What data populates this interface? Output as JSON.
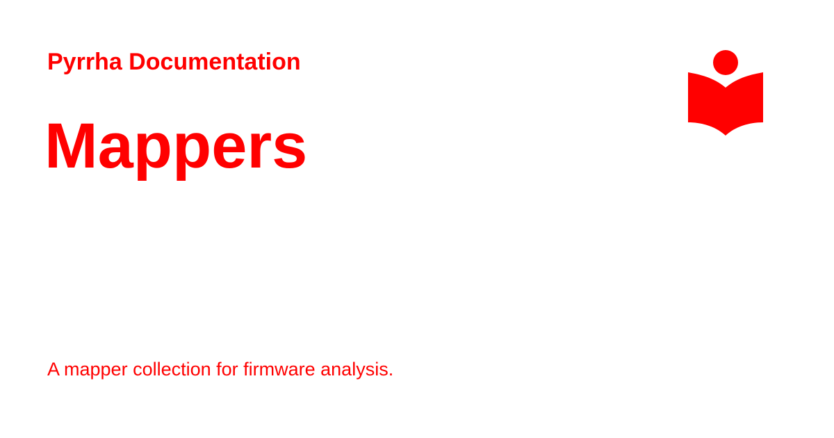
{
  "theme": {
    "accent": "#ff0000",
    "background": "#ffffff"
  },
  "header": {
    "site_name": "Pyrrha Documentation",
    "logo_icon": "reader-book-icon"
  },
  "main": {
    "title": "Mappers",
    "description": "A mapper collection for firmware analysis."
  }
}
